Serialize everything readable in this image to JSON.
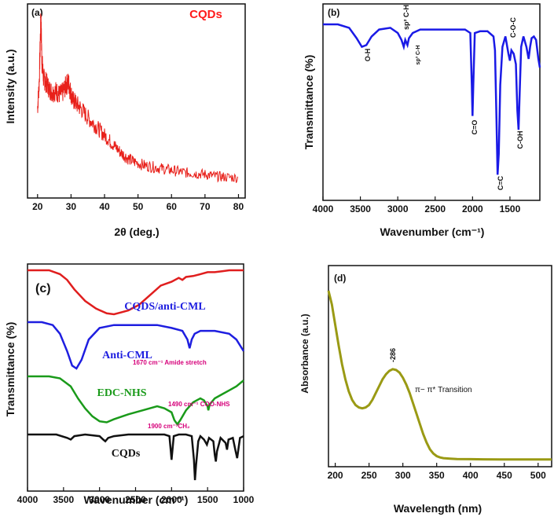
{
  "figure": {
    "panels": [
      "(a)",
      "(b)",
      "(c)",
      "(d)"
    ]
  },
  "chart_data": [
    {
      "id": "a",
      "type": "line",
      "panel_label": "(a)",
      "title": "CQDs",
      "title_color": "#ff1a1a",
      "xlabel": "2θ (deg.)",
      "ylabel": "Intensity (a.u.)",
      "xlim": [
        17,
        82
      ],
      "xticks": [
        20,
        30,
        40,
        50,
        60,
        70,
        80
      ],
      "ylim": [
        0,
        1
      ],
      "color": "#e8201a",
      "series": [
        {
          "x": [
            20,
            20.5,
            21,
            21.3,
            21.8,
            22.5,
            23.5,
            24.5,
            25.5,
            26.5,
            27.5,
            28.5,
            29.2,
            29.8,
            30.5,
            31.5,
            33,
            35,
            37,
            39,
            41,
            43,
            45,
            47,
            49,
            52,
            55,
            58,
            61,
            64,
            67,
            70,
            73,
            76,
            80
          ],
          "y": [
            0.45,
            0.6,
            0.97,
            0.72,
            0.62,
            0.6,
            0.56,
            0.54,
            0.55,
            0.53,
            0.54,
            0.58,
            0.6,
            0.55,
            0.5,
            0.48,
            0.45,
            0.4,
            0.36,
            0.32,
            0.28,
            0.24,
            0.2,
            0.17,
            0.15,
            0.13,
            0.12,
            0.11,
            0.1,
            0.09,
            0.085,
            0.08,
            0.07,
            0.065,
            0.06
          ]
        }
      ]
    },
    {
      "id": "b",
      "type": "line",
      "panel_label": "(b)",
      "xlabel": "Wavenumber (cm⁻¹)",
      "ylabel": "Transmittance (%)",
      "xlim": [
        4000,
        1100
      ],
      "xticks": [
        4000,
        3500,
        3000,
        2500,
        2000,
        1500
      ],
      "ylim": [
        0,
        1
      ],
      "color": "#1a1ae6",
      "annotations": [
        "O-H",
        "sp² C-H",
        "sp³ C-H",
        "C=O",
        "C=C",
        "C-OH",
        "C-O-C"
      ],
      "series": [
        {
          "x": [
            4000,
            3800,
            3650,
            3550,
            3480,
            3420,
            3350,
            3250,
            3100,
            3000,
            2950,
            2920,
            2900,
            2870,
            2850,
            2800,
            2700,
            2500,
            2300,
            2100,
            2030,
            2010,
            2000,
            1990,
            1970,
            1900,
            1800,
            1720,
            1700,
            1680,
            1665,
            1650,
            1630,
            1600,
            1560,
            1520,
            1500,
            1480,
            1450,
            1420,
            1400,
            1385,
            1370,
            1350,
            1320,
            1280,
            1250,
            1230,
            1210,
            1180,
            1150,
            1120,
            1100
          ],
          "y": [
            0.95,
            0.95,
            0.93,
            0.87,
            0.82,
            0.83,
            0.88,
            0.92,
            0.93,
            0.9,
            0.86,
            0.82,
            0.86,
            0.83,
            0.87,
            0.9,
            0.92,
            0.92,
            0.92,
            0.92,
            0.9,
            0.6,
            0.42,
            0.6,
            0.9,
            0.91,
            0.91,
            0.88,
            0.8,
            0.4,
            0.08,
            0.2,
            0.6,
            0.82,
            0.88,
            0.78,
            0.74,
            0.8,
            0.78,
            0.72,
            0.45,
            0.34,
            0.55,
            0.82,
            0.88,
            0.82,
            0.75,
            0.82,
            0.87,
            0.88,
            0.86,
            0.75,
            0.7
          ]
        }
      ]
    },
    {
      "id": "c",
      "type": "line",
      "panel_label": "(c)",
      "xlabel": "Wavenumber (cm⁻¹)",
      "ylabel": "Transmittance (%)",
      "xlim": [
        4000,
        1000
      ],
      "xticks": [
        4000,
        3500,
        3000,
        2500,
        2000,
        1500,
        1000
      ],
      "ylim": [
        0,
        1
      ],
      "series": [
        {
          "name": "CQDS/anti-CML",
          "color": "#e01e1e",
          "x": [
            4000,
            3700,
            3550,
            3450,
            3350,
            3200,
            3050,
            2900,
            2800,
            2700,
            2600,
            2450,
            2300,
            2150,
            2000,
            1900,
            1850,
            1800,
            1700,
            1600,
            1500,
            1400,
            1300,
            1200,
            1100,
            1000
          ],
          "y": [
            0.98,
            0.98,
            0.96,
            0.93,
            0.88,
            0.82,
            0.78,
            0.755,
            0.75,
            0.76,
            0.77,
            0.8,
            0.85,
            0.9,
            0.92,
            0.94,
            0.93,
            0.945,
            0.95,
            0.96,
            0.97,
            0.97,
            0.975,
            0.98,
            0.98,
            0.98
          ]
        },
        {
          "name": "Anti-CML",
          "color": "#1e1ee0",
          "x": [
            4000,
            3800,
            3650,
            3550,
            3450,
            3380,
            3320,
            3250,
            3150,
            3000,
            2800,
            2500,
            2200,
            2000,
            1850,
            1780,
            1750,
            1720,
            1680,
            1600,
            1400,
            1200,
            1100,
            1000
          ],
          "y": [
            0.76,
            0.76,
            0.75,
            0.72,
            0.66,
            0.61,
            0.6,
            0.63,
            0.7,
            0.74,
            0.75,
            0.75,
            0.75,
            0.74,
            0.73,
            0.7,
            0.67,
            0.7,
            0.72,
            0.73,
            0.73,
            0.72,
            0.7,
            0.66
          ]
        },
        {
          "name": "EDC-NHS",
          "color": "#1a9a1a",
          "x": [
            4000,
            3700,
            3550,
            3400,
            3300,
            3200,
            3100,
            3000,
            2900,
            2800,
            2600,
            2400,
            2200,
            2100,
            2000,
            1960,
            1920,
            1880,
            1800,
            1700,
            1600,
            1550,
            1500,
            1490,
            1470,
            1400,
            1300,
            1200,
            1100,
            1000
          ],
          "y": [
            0.57,
            0.57,
            0.56,
            0.52,
            0.46,
            0.41,
            0.37,
            0.345,
            0.34,
            0.355,
            0.38,
            0.4,
            0.42,
            0.41,
            0.39,
            0.35,
            0.33,
            0.35,
            0.4,
            0.44,
            0.46,
            0.45,
            0.42,
            0.4,
            0.43,
            0.46,
            0.48,
            0.5,
            0.52,
            0.55
          ]
        },
        {
          "name": "CQDs",
          "color": "#111111",
          "x": [
            4000,
            3800,
            3600,
            3450,
            3400,
            3350,
            3200,
            3000,
            2950,
            2920,
            2880,
            2800,
            2600,
            2300,
            2100,
            2030,
            2010,
            2000,
            1990,
            1970,
            1900,
            1800,
            1720,
            1690,
            1675,
            1660,
            1630,
            1600,
            1550,
            1510,
            1480,
            1420,
            1400,
            1385,
            1370,
            1320,
            1250,
            1230,
            1210,
            1150,
            1110,
            1090,
            1070,
            1050,
            1000
          ],
          "y": [
            0.3,
            0.3,
            0.3,
            0.28,
            0.27,
            0.29,
            0.3,
            0.29,
            0.27,
            0.26,
            0.28,
            0.29,
            0.3,
            0.3,
            0.3,
            0.29,
            0.2,
            0.15,
            0.2,
            0.29,
            0.3,
            0.3,
            0.29,
            0.15,
            0.03,
            0.12,
            0.26,
            0.29,
            0.27,
            0.24,
            0.28,
            0.26,
            0.18,
            0.14,
            0.2,
            0.28,
            0.25,
            0.21,
            0.27,
            0.28,
            0.2,
            0.16,
            0.22,
            0.28,
            0.29
          ]
        }
      ],
      "labels": {
        "cqds_anti_cml": "CQDS/anti-CML",
        "anti_cml": "Anti-CML",
        "edc_nhs": "EDC-NHS",
        "cqds": "CQDs",
        "amide": "1670 cm⁻¹ Amide stretch",
        "coo_nhs": "1490 cm⁻¹ COO-NHS",
        "ch2": "1900 cm⁻¹CH₂"
      }
    },
    {
      "id": "d",
      "type": "line",
      "panel_label": "(d)",
      "xlabel": "Wavelength (nm)",
      "ylabel": "Absorbance (a.u.)",
      "xlim": [
        190,
        520
      ],
      "xticks": [
        200,
        250,
        300,
        350,
        400,
        450,
        500
      ],
      "ylim": [
        0,
        1
      ],
      "color": "#9a9a14",
      "peak_label": "-286",
      "transition_label": "π− π* Transition",
      "series": [
        {
          "x": [
            190,
            195,
            200,
            205,
            210,
            215,
            220,
            225,
            230,
            235,
            240,
            245,
            250,
            255,
            260,
            265,
            270,
            275,
            280,
            285,
            290,
            295,
            300,
            305,
            310,
            315,
            320,
            325,
            330,
            335,
            340,
            345,
            350,
            355,
            360,
            370,
            380,
            400,
            420,
            450,
            480,
            520
          ],
          "y": [
            1.0,
            0.92,
            0.8,
            0.68,
            0.57,
            0.48,
            0.41,
            0.36,
            0.33,
            0.315,
            0.31,
            0.315,
            0.33,
            0.36,
            0.4,
            0.44,
            0.48,
            0.51,
            0.53,
            0.54,
            0.535,
            0.52,
            0.49,
            0.45,
            0.4,
            0.34,
            0.28,
            0.22,
            0.16,
            0.11,
            0.07,
            0.045,
            0.03,
            0.022,
            0.018,
            0.015,
            0.013,
            0.012,
            0.011,
            0.01,
            0.01,
            0.01
          ]
        }
      ]
    }
  ]
}
